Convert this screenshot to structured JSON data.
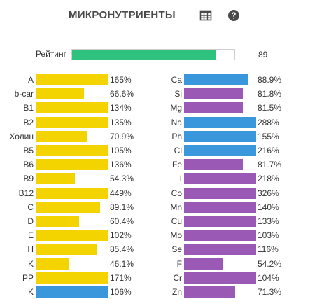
{
  "header": {
    "title": "МИКРОНУТРИЕНТЫ",
    "table_icon": "table-grid-icon",
    "help_icon": "question-circle-icon"
  },
  "rating": {
    "label": "Рейтинг",
    "value": "89",
    "fraction": 0.89,
    "color": "#2ec27e"
  },
  "colors": {
    "yellow": "#f4d400",
    "blue": "#3a97dc",
    "purple": "#9b59b6"
  },
  "left_column": [
    {
      "name": "A",
      "pct": "165%",
      "fraction": 1.0,
      "color": "yellow"
    },
    {
      "name": "b-car",
      "pct": "66.6%",
      "fraction": 0.666,
      "color": "yellow"
    },
    {
      "name": "B1",
      "pct": "134%",
      "fraction": 1.0,
      "color": "yellow"
    },
    {
      "name": "B2",
      "pct": "135%",
      "fraction": 1.0,
      "color": "yellow"
    },
    {
      "name": "Холин",
      "pct": "70.9%",
      "fraction": 0.709,
      "color": "yellow"
    },
    {
      "name": "B5",
      "pct": "105%",
      "fraction": 1.0,
      "color": "yellow"
    },
    {
      "name": "B6",
      "pct": "136%",
      "fraction": 1.0,
      "color": "yellow"
    },
    {
      "name": "B9",
      "pct": "54.3%",
      "fraction": 0.543,
      "color": "yellow"
    },
    {
      "name": "B12",
      "pct": "449%",
      "fraction": 1.0,
      "color": "yellow"
    },
    {
      "name": "C",
      "pct": "89.1%",
      "fraction": 0.891,
      "color": "yellow"
    },
    {
      "name": "D",
      "pct": "60.4%",
      "fraction": 0.604,
      "color": "yellow"
    },
    {
      "name": "E",
      "pct": "102%",
      "fraction": 1.0,
      "color": "yellow"
    },
    {
      "name": "H",
      "pct": "85.4%",
      "fraction": 0.854,
      "color": "yellow"
    },
    {
      "name": "K",
      "pct": "46.1%",
      "fraction": 0.461,
      "color": "yellow"
    },
    {
      "name": "PP",
      "pct": "171%",
      "fraction": 1.0,
      "color": "yellow"
    },
    {
      "name": "K",
      "pct": "106%",
      "fraction": 1.0,
      "color": "blue"
    }
  ],
  "right_column": [
    {
      "name": "Ca",
      "pct": "88.9%",
      "fraction": 0.889,
      "color": "blue"
    },
    {
      "name": "Si",
      "pct": "81.8%",
      "fraction": 0.818,
      "color": "purple"
    },
    {
      "name": "Mg",
      "pct": "81.5%",
      "fraction": 0.815,
      "color": "purple"
    },
    {
      "name": "Na",
      "pct": "288%",
      "fraction": 1.0,
      "color": "blue"
    },
    {
      "name": "Ph",
      "pct": "155%",
      "fraction": 1.0,
      "color": "blue"
    },
    {
      "name": "Cl",
      "pct": "216%",
      "fraction": 1.0,
      "color": "blue"
    },
    {
      "name": "Fe",
      "pct": "81.7%",
      "fraction": 0.817,
      "color": "purple"
    },
    {
      "name": "I",
      "pct": "218%",
      "fraction": 1.0,
      "color": "purple"
    },
    {
      "name": "Co",
      "pct": "326%",
      "fraction": 1.0,
      "color": "purple"
    },
    {
      "name": "Mn",
      "pct": "140%",
      "fraction": 1.0,
      "color": "purple"
    },
    {
      "name": "Cu",
      "pct": "133%",
      "fraction": 1.0,
      "color": "purple"
    },
    {
      "name": "Mo",
      "pct": "103%",
      "fraction": 1.0,
      "color": "purple"
    },
    {
      "name": "Se",
      "pct": "116%",
      "fraction": 1.0,
      "color": "purple"
    },
    {
      "name": "F",
      "pct": "54.2%",
      "fraction": 0.542,
      "color": "purple"
    },
    {
      "name": "Cr",
      "pct": "104%",
      "fraction": 1.0,
      "color": "purple"
    },
    {
      "name": "Zn",
      "pct": "71.3%",
      "fraction": 0.713,
      "color": "purple"
    }
  ]
}
